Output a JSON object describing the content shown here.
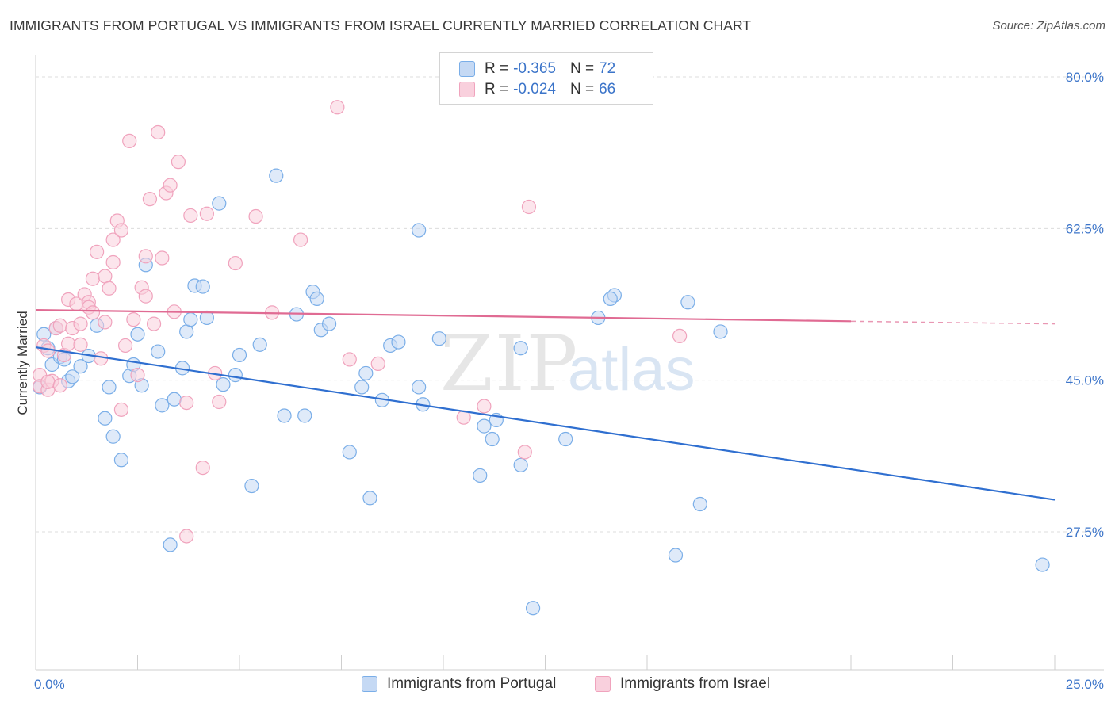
{
  "title": "IMMIGRANTS FROM PORTUGAL VS IMMIGRANTS FROM ISRAEL CURRENTLY MARRIED CORRELATION CHART",
  "source": "Source: ZipAtlas.com",
  "watermark": {
    "zip": "ZIP",
    "atlas": "atlas"
  },
  "legend_top": [
    {
      "r_label": "R =",
      "r_value": "-0.365",
      "n_label": "N =",
      "n_value": "72"
    },
    {
      "r_label": "R =",
      "r_value": "-0.024",
      "n_label": "N =",
      "n_value": "66"
    }
  ],
  "chart_data": {
    "type": "scatter",
    "title": "IMMIGRANTS FROM PORTUGAL VS IMMIGRANTS FROM ISRAEL CURRENTLY MARRIED CORRELATION CHART",
    "xlabel": "",
    "ylabel": "Currently Married",
    "xlim": [
      0,
      25
    ],
    "ylim": [
      10,
      83
    ],
    "x_tick_labels": [
      "0.0%",
      "25.0%"
    ],
    "y_ticks": [
      27.5,
      45.0,
      62.5,
      80.0
    ],
    "y_tick_labels": [
      "27.5%",
      "45.0%",
      "62.5%",
      "80.0%"
    ],
    "grid": true,
    "legend_position": "bottom",
    "series": [
      {
        "name": "Immigrants from Portugal",
        "color": "#7aaee8",
        "fill": "#c5d9f4",
        "line_color": "#2f6fd0",
        "trend": {
          "x": [
            0.0,
            25.0
          ],
          "y": [
            48.8,
            31.2
          ]
        },
        "points": [
          [
            0.1,
            44.2
          ],
          [
            0.2,
            50.3
          ],
          [
            0.3,
            48.7
          ],
          [
            0.4,
            46.8
          ],
          [
            0.5,
            51.0
          ],
          [
            0.6,
            47.7
          ],
          [
            0.7,
            47.4
          ],
          [
            0.8,
            44.9
          ],
          [
            0.9,
            45.4
          ],
          [
            1.1,
            46.6
          ],
          [
            1.3,
            47.8
          ],
          [
            1.5,
            51.3
          ],
          [
            1.7,
            40.6
          ],
          [
            1.8,
            44.2
          ],
          [
            1.9,
            38.5
          ],
          [
            2.1,
            35.8
          ],
          [
            2.3,
            45.5
          ],
          [
            2.4,
            46.8
          ],
          [
            2.5,
            50.3
          ],
          [
            2.6,
            44.4
          ],
          [
            2.7,
            58.3
          ],
          [
            3.0,
            48.3
          ],
          [
            3.1,
            42.1
          ],
          [
            3.3,
            26.0
          ],
          [
            3.4,
            42.8
          ],
          [
            3.6,
            46.4
          ],
          [
            3.7,
            50.6
          ],
          [
            3.8,
            52.0
          ],
          [
            3.9,
            55.9
          ],
          [
            4.1,
            55.8
          ],
          [
            4.2,
            52.2
          ],
          [
            4.5,
            65.4
          ],
          [
            4.6,
            44.5
          ],
          [
            4.9,
            45.6
          ],
          [
            5.0,
            47.9
          ],
          [
            5.3,
            32.8
          ],
          [
            5.5,
            49.1
          ],
          [
            5.9,
            68.6
          ],
          [
            6.1,
            40.9
          ],
          [
            6.4,
            52.6
          ],
          [
            6.6,
            40.9
          ],
          [
            6.8,
            55.2
          ],
          [
            6.9,
            54.4
          ],
          [
            7.0,
            50.8
          ],
          [
            7.2,
            51.5
          ],
          [
            7.7,
            36.7
          ],
          [
            8.0,
            44.2
          ],
          [
            8.1,
            45.8
          ],
          [
            8.2,
            31.4
          ],
          [
            8.5,
            42.7
          ],
          [
            8.7,
            49.0
          ],
          [
            8.9,
            49.4
          ],
          [
            9.4,
            44.2
          ],
          [
            9.4,
            62.3
          ],
          [
            9.5,
            42.2
          ],
          [
            9.9,
            49.8
          ],
          [
            10.9,
            34.0
          ],
          [
            11.0,
            39.7
          ],
          [
            11.2,
            38.2
          ],
          [
            11.3,
            40.4
          ],
          [
            11.9,
            35.2
          ],
          [
            11.9,
            48.7
          ],
          [
            12.2,
            18.7
          ],
          [
            14.2,
            54.8
          ],
          [
            13.8,
            52.2
          ],
          [
            14.1,
            54.4
          ],
          [
            13.0,
            38.2
          ],
          [
            15.7,
            24.8
          ],
          [
            16.0,
            54.0
          ],
          [
            16.3,
            30.7
          ],
          [
            16.8,
            50.6
          ],
          [
            24.7,
            23.7
          ]
        ]
      },
      {
        "name": "Immigrants from Israel",
        "color": "#f0a3bd",
        "fill": "#f9d0dd",
        "line_color": "#e06b93",
        "trend": {
          "x": [
            0.0,
            20.0
          ],
          "y": [
            53.1,
            51.8
          ]
        },
        "trend_dashed": {
          "x": [
            20.0,
            25.0
          ],
          "y": [
            51.8,
            51.5
          ]
        },
        "points": [
          [
            0.1,
            45.6
          ],
          [
            0.1,
            44.3
          ],
          [
            0.2,
            49.0
          ],
          [
            0.3,
            43.9
          ],
          [
            0.3,
            48.4
          ],
          [
            0.4,
            44.9
          ],
          [
            0.5,
            51.0
          ],
          [
            0.6,
            51.3
          ],
          [
            0.7,
            47.9
          ],
          [
            0.8,
            49.2
          ],
          [
            0.8,
            54.3
          ],
          [
            0.9,
            51.0
          ],
          [
            1.0,
            53.8
          ],
          [
            1.1,
            49.1
          ],
          [
            1.2,
            54.9
          ],
          [
            1.3,
            54.0
          ],
          [
            1.3,
            53.4
          ],
          [
            1.4,
            52.8
          ],
          [
            1.4,
            56.7
          ],
          [
            1.5,
            59.8
          ],
          [
            1.6,
            47.5
          ],
          [
            1.7,
            57.0
          ],
          [
            1.7,
            51.7
          ],
          [
            1.8,
            55.6
          ],
          [
            1.9,
            61.2
          ],
          [
            1.9,
            58.6
          ],
          [
            2.0,
            63.4
          ],
          [
            2.1,
            62.3
          ],
          [
            2.1,
            41.6
          ],
          [
            2.2,
            49.0
          ],
          [
            2.3,
            72.6
          ],
          [
            2.4,
            52.0
          ],
          [
            2.5,
            45.6
          ],
          [
            2.6,
            55.7
          ],
          [
            2.7,
            54.7
          ],
          [
            2.7,
            59.3
          ],
          [
            2.8,
            65.9
          ],
          [
            2.9,
            51.5
          ],
          [
            3.0,
            73.6
          ],
          [
            3.1,
            59.1
          ],
          [
            3.2,
            66.6
          ],
          [
            3.3,
            67.5
          ],
          [
            3.4,
            52.9
          ],
          [
            3.5,
            70.2
          ],
          [
            3.7,
            42.4
          ],
          [
            3.8,
            64.0
          ],
          [
            4.1,
            34.9
          ],
          [
            4.2,
            64.2
          ],
          [
            4.4,
            45.8
          ],
          [
            4.5,
            42.5
          ],
          [
            4.9,
            58.5
          ],
          [
            5.4,
            63.9
          ],
          [
            5.8,
            52.8
          ],
          [
            6.5,
            61.2
          ],
          [
            7.4,
            76.5
          ],
          [
            7.7,
            47.4
          ],
          [
            8.4,
            46.9
          ],
          [
            10.5,
            40.7
          ],
          [
            11.0,
            42.0
          ],
          [
            12.0,
            36.7
          ],
          [
            12.1,
            65.0
          ],
          [
            15.8,
            50.1
          ],
          [
            0.3,
            44.8
          ],
          [
            0.6,
            44.4
          ],
          [
            3.7,
            27.0
          ],
          [
            1.1,
            51.5
          ]
        ]
      }
    ]
  }
}
